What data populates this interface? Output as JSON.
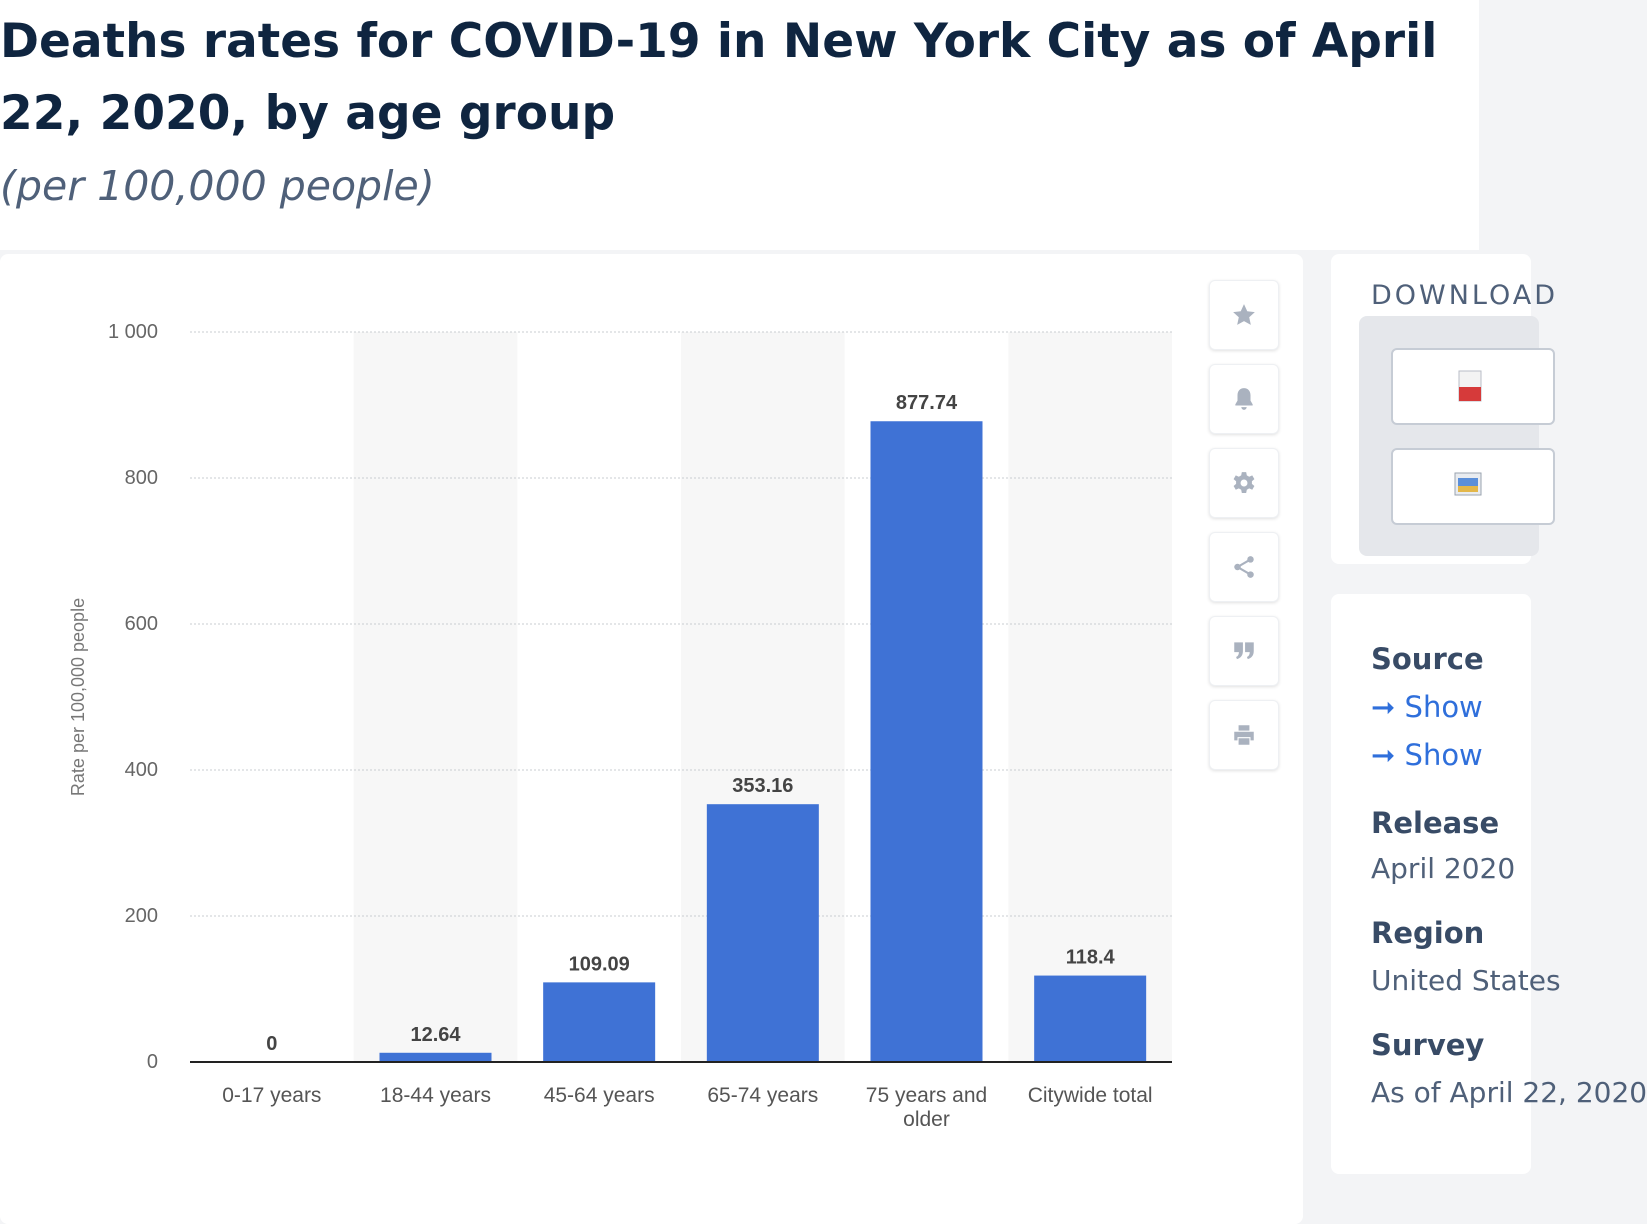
{
  "header": {
    "title": "Deaths rates for COVID-19 in New York City as of April 22, 2020, by age group",
    "subtitle": "(per 100,000 people)"
  },
  "chart_data": {
    "type": "bar",
    "categories": [
      "0-17 years",
      "18-44 years",
      "45-64 years",
      "65-74 years",
      "75 years and older",
      "Citywide total"
    ],
    "values": [
      0,
      12.64,
      109.09,
      353.16,
      877.74,
      118.4
    ],
    "value_labels": [
      "0",
      "12.64",
      "109.09",
      "353.16",
      "877.74",
      "118.4"
    ],
    "ylabel": "Rate per 100,000 people",
    "xlabel": "",
    "ylim": [
      0,
      1000
    ],
    "yticks": [
      0,
      200,
      400,
      600,
      800,
      1000
    ],
    "ytick_labels": [
      "0",
      "200",
      "400",
      "600",
      "800",
      "1 000"
    ],
    "grid": true,
    "bar_color": "#3f72d5",
    "band_color": "#f7f7f7"
  },
  "toolbar": {
    "icons": [
      "star-icon",
      "bell-icon",
      "gear-icon",
      "share-icon",
      "quote-icon",
      "print-icon"
    ]
  },
  "sidebar": {
    "download_title": "DOWNLOAD",
    "source_label": "Source",
    "show_links": [
      "Show",
      "Show"
    ],
    "release_label": "Release",
    "release_value": "April 2020",
    "region_label": "Region",
    "region_value": "United States",
    "survey_label": "Survey",
    "survey_value": "As of April 22, 2020"
  },
  "colors": {
    "accent": "#3f72d5",
    "title": "#0f2540",
    "link": "#2f6fdb"
  }
}
